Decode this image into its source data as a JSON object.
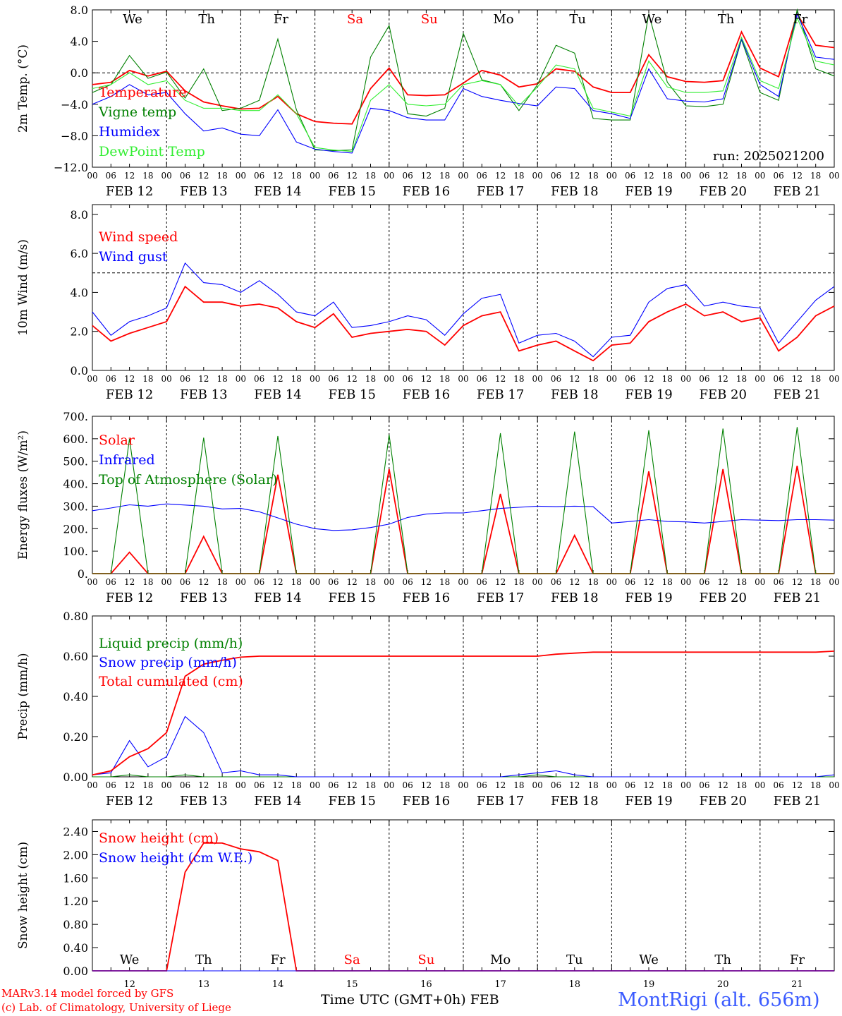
{
  "footer": {
    "model": "MARv3.14 model forced by GFS",
    "credit": "(c) Lab. of Climatology, University of Liege",
    "xlabel": "Time UTC (GMT+0h)",
    "month": "FEB",
    "station": "MontRigi (alt. 656m)"
  },
  "colors": {
    "red": "#ff0000",
    "green": "#008000",
    "lightgreen": "#33ee33",
    "blue": "#0000ff",
    "grid": "#000000"
  },
  "chart_data": [
    {
      "type": "line",
      "ylabel": "2m Temp. (°C)",
      "ylim": [
        -12,
        8
      ],
      "yticks": [
        "8.0",
        "4.0",
        "0.0",
        "−4.0",
        "−8.0",
        "−12.0"
      ],
      "ytick_values": [
        8,
        4,
        0,
        -4,
        -8,
        -12
      ],
      "hline": 0,
      "annotation": "run: 2025021200",
      "day_labels": [
        "We",
        "Th",
        "Fr",
        "Sa",
        "Su",
        "Mo",
        "Tu",
        "We",
        "Th",
        "Fr"
      ],
      "weekend_days": [
        3,
        4
      ],
      "x_hours": [
        0,
        6,
        12,
        18,
        24,
        30,
        36,
        42,
        48,
        54,
        60,
        66,
        72,
        78,
        84,
        90,
        96,
        102,
        108,
        114,
        120,
        126,
        132,
        138,
        144,
        150,
        156,
        162,
        168,
        174,
        180,
        186,
        192,
        198,
        204,
        210,
        216,
        222,
        228,
        234,
        240
      ],
      "series": [
        {
          "name": "Temperature",
          "color": "#ff0000",
          "values": [
            -1.5,
            -1.2,
            0.3,
            -0.4,
            0.2,
            -2.3,
            -3.7,
            -4.2,
            -4.6,
            -4.5,
            -3.0,
            -5.2,
            -6.2,
            -6.4,
            -6.5,
            -2.0,
            0.6,
            -2.8,
            -2.9,
            -2.8,
            -1.3,
            0.3,
            -0.3,
            -1.8,
            -1.4,
            0.5,
            0.2,
            -1.8,
            -2.5,
            -2.5,
            2.3,
            -0.5,
            -1.1,
            -1.2,
            -1.0,
            5.2,
            0.6,
            -0.5,
            7.5,
            3.5,
            3.2
          ]
        },
        {
          "name": "Vigne temp",
          "color": "#008000",
          "values": [
            -2.5,
            -1.5,
            2.2,
            -0.7,
            0.1,
            -3.2,
            0.5,
            -4.8,
            -4.5,
            -3.5,
            4.3,
            -4.7,
            -9.8,
            -9.9,
            -9.8,
            2.0,
            6.0,
            -5.2,
            -5.5,
            -4.5,
            5.0,
            -0.9,
            -1.5,
            -4.8,
            -1.5,
            3.5,
            2.5,
            -5.8,
            -6.0,
            -6.0,
            7.5,
            -1.2,
            -4.2,
            -4.3,
            -4.0,
            4.2,
            -2.5,
            -3.5,
            8.0,
            0.5,
            -0.4
          ]
        },
        {
          "name": "Humidex",
          "color": "#0000ff",
          "values": [
            -4.0,
            -3.0,
            -1.5,
            -2.8,
            -2.5,
            -5.2,
            -7.4,
            -7.0,
            -7.8,
            -8.0,
            -4.7,
            -8.8,
            -9.7,
            -10.0,
            -10.2,
            -4.5,
            -4.8,
            -5.7,
            -6.0,
            -6.0,
            -2.0,
            -3.0,
            -3.5,
            -3.9,
            -4.2,
            -1.8,
            -2.0,
            -4.8,
            -5.2,
            -5.8,
            0.5,
            -3.3,
            -3.6,
            -3.7,
            -3.3,
            4.3,
            -1.5,
            -3.0,
            7.5,
            2.0,
            1.7
          ]
        },
        {
          "name": "DewPoint Temp",
          "color": "#33ee33",
          "values": [
            -2.0,
            -1.5,
            0.0,
            -1.5,
            -1.0,
            -3.5,
            -4.5,
            -4.5,
            -4.8,
            -4.8,
            -2.8,
            -5.2,
            -9.5,
            -9.8,
            -10.0,
            -3.5,
            -1.5,
            -4.0,
            -4.2,
            -4.0,
            -1.5,
            -1.0,
            -1.5,
            -4.2,
            -1.8,
            1.0,
            0.5,
            -4.5,
            -5.0,
            -5.5,
            1.5,
            -1.8,
            -2.5,
            -2.5,
            -2.3,
            4.5,
            -1.0,
            -2.0,
            7.0,
            1.5,
            1.0
          ]
        }
      ]
    },
    {
      "type": "line",
      "ylabel": "10m Wind (m/s)",
      "ylim": [
        0,
        8.5
      ],
      "yticks": [
        "8.0",
        "6.0",
        "4.0",
        "2.0",
        "0.0"
      ],
      "ytick_values": [
        8,
        6,
        4,
        2,
        0
      ],
      "hline": 5,
      "x_hours": [
        0,
        6,
        12,
        18,
        24,
        30,
        36,
        42,
        48,
        54,
        60,
        66,
        72,
        78,
        84,
        90,
        96,
        102,
        108,
        114,
        120,
        126,
        132,
        138,
        144,
        150,
        156,
        162,
        168,
        174,
        180,
        186,
        192,
        198,
        204,
        210,
        216,
        222,
        228,
        234,
        240
      ],
      "series": [
        {
          "name": "Wind speed",
          "color": "#ff0000",
          "values": [
            2.3,
            1.5,
            1.9,
            2.2,
            2.5,
            4.3,
            3.5,
            3.5,
            3.3,
            3.4,
            3.2,
            2.5,
            2.2,
            2.9,
            1.7,
            1.9,
            2.0,
            2.1,
            2.0,
            1.3,
            2.3,
            2.8,
            3.0,
            1.0,
            1.3,
            1.5,
            1.0,
            0.5,
            1.3,
            1.4,
            2.5,
            3.0,
            3.4,
            2.8,
            3.0,
            2.5,
            2.7,
            1.0,
            1.7,
            2.8,
            3.3
          ]
        },
        {
          "name": "Wind gust",
          "color": "#0000ff",
          "values": [
            3.0,
            1.8,
            2.5,
            2.8,
            3.2,
            5.5,
            4.5,
            4.4,
            4.0,
            4.6,
            3.9,
            3.0,
            2.8,
            3.5,
            2.2,
            2.3,
            2.5,
            2.8,
            2.6,
            1.8,
            2.9,
            3.7,
            3.9,
            1.4,
            1.8,
            1.9,
            1.5,
            0.7,
            1.7,
            1.8,
            3.5,
            4.2,
            4.4,
            3.3,
            3.5,
            3.3,
            3.2,
            1.4,
            2.5,
            3.6,
            4.3
          ]
        }
      ]
    },
    {
      "type": "line",
      "ylabel": "Energy fluxes (W/m²)",
      "ylim": [
        0,
        700
      ],
      "yticks": [
        "700.",
        "600.",
        "500.",
        "400.",
        "300.",
        "200.",
        "100.",
        "0."
      ],
      "ytick_values": [
        700,
        600,
        500,
        400,
        300,
        200,
        100,
        0
      ],
      "x_hours": [
        0,
        6,
        12,
        18,
        24,
        30,
        36,
        42,
        48,
        54,
        60,
        66,
        72,
        78,
        84,
        90,
        96,
        102,
        108,
        114,
        120,
        126,
        132,
        138,
        144,
        150,
        156,
        162,
        168,
        174,
        180,
        186,
        192,
        198,
        204,
        210,
        216,
        222,
        228,
        234,
        240
      ],
      "series": [
        {
          "name": "Solar",
          "color": "#ff0000",
          "values": [
            0,
            0,
            95,
            0,
            0,
            0,
            165,
            0,
            0,
            0,
            440,
            0,
            0,
            0,
            0,
            0,
            465,
            0,
            0,
            0,
            0,
            0,
            355,
            0,
            0,
            0,
            170,
            0,
            0,
            0,
            455,
            0,
            0,
            0,
            465,
            0,
            0,
            0,
            480,
            0,
            0
          ]
        },
        {
          "name": "Infrared",
          "color": "#0000ff",
          "values": [
            280,
            292,
            306,
            300,
            310,
            305,
            300,
            288,
            290,
            275,
            248,
            220,
            200,
            192,
            195,
            205,
            220,
            250,
            265,
            270,
            270,
            280,
            290,
            295,
            300,
            298,
            300,
            298,
            225,
            232,
            240,
            232,
            230,
            225,
            232,
            240,
            238,
            236,
            240,
            240,
            238
          ]
        },
        {
          "name": "Top of Atmosphere (Solar)",
          "color": "#008000",
          "values": [
            0,
            0,
            600,
            0,
            0,
            0,
            605,
            0,
            0,
            0,
            612,
            0,
            0,
            0,
            0,
            0,
            618,
            0,
            0,
            0,
            0,
            0,
            625,
            0,
            0,
            0,
            632,
            0,
            0,
            0,
            638,
            0,
            0,
            0,
            645,
            0,
            0,
            0,
            652,
            0,
            0
          ]
        }
      ]
    },
    {
      "type": "line",
      "ylabel": "Precip (mm/h)",
      "ylim": [
        0,
        0.8
      ],
      "yticks": [
        "0.80",
        "0.60",
        "0.40",
        "0.20",
        "0.00"
      ],
      "ytick_values": [
        0.8,
        0.6,
        0.4,
        0.2,
        0.0
      ],
      "x_hours": [
        0,
        6,
        12,
        18,
        24,
        30,
        36,
        42,
        48,
        54,
        60,
        66,
        72,
        78,
        84,
        90,
        96,
        102,
        108,
        114,
        120,
        126,
        132,
        138,
        144,
        150,
        156,
        162,
        168,
        174,
        180,
        186,
        192,
        198,
        204,
        210,
        216,
        222,
        228,
        234,
        240
      ],
      "series": [
        {
          "name": "Liquid precip (mm/h)",
          "color": "#008000",
          "values": [
            0,
            0,
            0.01,
            0,
            0,
            0.01,
            0,
            0,
            0,
            0,
            0,
            0,
            0,
            0,
            0,
            0,
            0,
            0,
            0,
            0,
            0,
            0,
            0,
            0,
            0.01,
            0,
            0,
            0,
            0,
            0,
            0,
            0,
            0,
            0,
            0,
            0,
            0,
            0,
            0,
            0,
            0
          ]
        },
        {
          "name": "Snow precip (mm/h)",
          "color": "#0000ff",
          "values": [
            0.01,
            0.02,
            0.18,
            0.05,
            0.1,
            0.3,
            0.22,
            0.02,
            0.03,
            0.01,
            0.01,
            0,
            0,
            0,
            0,
            0,
            0,
            0,
            0,
            0,
            0,
            0,
            0,
            0.01,
            0.02,
            0.03,
            0.01,
            0,
            0,
            0,
            0,
            0,
            0,
            0,
            0,
            0,
            0,
            0,
            0,
            0,
            0.01
          ]
        },
        {
          "name": "Total cumulated (cm)",
          "color": "#ff0000",
          "values": [
            0.01,
            0.03,
            0.1,
            0.14,
            0.22,
            0.5,
            0.56,
            0.58,
            0.595,
            0.6,
            0.6,
            0.6,
            0.6,
            0.6,
            0.6,
            0.6,
            0.6,
            0.6,
            0.6,
            0.6,
            0.6,
            0.6,
            0.6,
            0.6,
            0.6,
            0.61,
            0.615,
            0.62,
            0.62,
            0.62,
            0.62,
            0.62,
            0.62,
            0.62,
            0.62,
            0.62,
            0.62,
            0.62,
            0.62,
            0.62,
            0.625
          ]
        }
      ]
    },
    {
      "type": "line",
      "ylabel": "Snow height (cm)",
      "ylim": [
        0,
        2.6
      ],
      "yticks": [
        "2.40",
        "2.00",
        "1.60",
        "1.20",
        "0.80",
        "0.40",
        "0.00"
      ],
      "ytick_values": [
        2.4,
        2.0,
        1.6,
        1.2,
        0.8,
        0.4,
        0.0
      ],
      "day_labels": [
        "We",
        "Th",
        "Fr",
        "Sa",
        "Su",
        "Mo",
        "Tu",
        "We",
        "Th",
        "Fr"
      ],
      "weekend_days": [
        3,
        4
      ],
      "day_numbers": [
        "12",
        "13",
        "14",
        "15",
        "16",
        "17",
        "18",
        "19",
        "20",
        "21"
      ],
      "x_hours": [
        0,
        6,
        12,
        18,
        24,
        30,
        36,
        42,
        48,
        54,
        60,
        66,
        72,
        78,
        84,
        90,
        96,
        102,
        108,
        114,
        120,
        126,
        132,
        138,
        144,
        150,
        156,
        162,
        168,
        174,
        180,
        186,
        192,
        198,
        204,
        210,
        216,
        222,
        228,
        234,
        240
      ],
      "series": [
        {
          "name": "Snow height (cm)",
          "color": "#ff0000",
          "values": [
            0,
            0,
            0,
            0,
            0,
            1.7,
            2.2,
            2.2,
            2.1,
            2.05,
            1.9,
            0,
            0,
            0,
            0,
            0,
            0,
            0,
            0,
            0,
            0,
            0,
            0,
            0,
            0,
            0,
            0,
            0,
            0,
            0,
            0,
            0,
            0,
            0,
            0,
            0,
            0,
            0,
            0,
            0,
            0
          ]
        },
        {
          "name": "Snow height (cm W.E.)",
          "color": "#0000ff",
          "values": [
            0,
            0,
            0,
            0,
            0,
            0,
            0,
            0,
            0,
            0,
            0,
            0,
            0,
            0,
            0,
            0,
            0,
            0,
            0,
            0,
            0,
            0,
            0,
            0,
            0,
            0,
            0,
            0,
            0,
            0,
            0,
            0,
            0,
            0,
            0,
            0,
            0,
            0,
            0,
            0,
            0
          ]
        }
      ]
    }
  ],
  "x_axis": {
    "hour_ticks": [
      "00",
      "06",
      "12",
      "18"
    ],
    "end_tick": "00",
    "date_labels": [
      "FEB 12",
      "FEB 13",
      "FEB 14",
      "FEB 15",
      "FEB 16",
      "FEB 17",
      "FEB 18",
      "FEB 19",
      "FEB 20",
      "FEB 21"
    ]
  }
}
